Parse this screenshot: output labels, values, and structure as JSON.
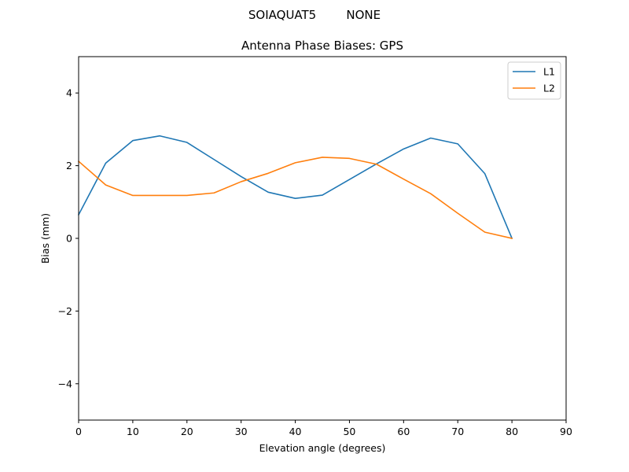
{
  "chart_data": {
    "type": "line",
    "suptitle": "SOIAQUAT5        NONE",
    "title": "Antenna Phase Biases: GPS",
    "xlabel": "Elevation angle (degrees)",
    "ylabel": "Bias (mm)",
    "xlim": [
      0,
      90
    ],
    "ylim": [
      -5,
      5
    ],
    "xticks": [
      0,
      10,
      20,
      30,
      40,
      50,
      60,
      70,
      80,
      90
    ],
    "yticks": [
      -4,
      -2,
      0,
      2,
      4
    ],
    "grid": false,
    "legend_position": "top-right",
    "x": [
      0,
      5,
      10,
      15,
      20,
      25,
      30,
      35,
      40,
      45,
      50,
      55,
      60,
      65,
      70,
      75,
      80
    ],
    "series": [
      {
        "name": "L1",
        "color": "#1f77b4",
        "values": [
          0.65,
          2.07,
          2.69,
          2.82,
          2.64,
          2.17,
          1.7,
          1.27,
          1.1,
          1.19,
          1.62,
          2.05,
          2.46,
          2.76,
          2.6,
          1.78,
          0.0
        ]
      },
      {
        "name": "L2",
        "color": "#ff7f0e",
        "values": [
          2.12,
          1.47,
          1.18,
          1.18,
          1.18,
          1.25,
          1.56,
          1.79,
          2.08,
          2.23,
          2.2,
          2.04,
          1.63,
          1.23,
          0.69,
          0.17,
          0.0
        ]
      }
    ]
  }
}
